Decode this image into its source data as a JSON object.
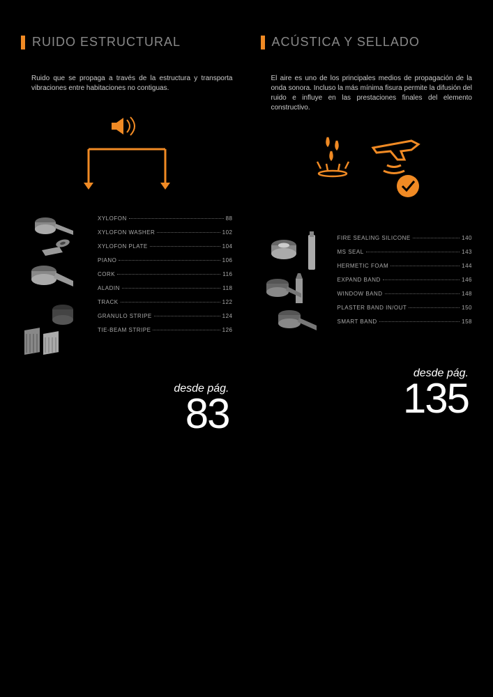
{
  "colors": {
    "accent": "#f08a24",
    "background": "#000000",
    "text_muted": "#888888",
    "text_body": "#cccccc",
    "text_list": "#aaaaaa",
    "icon_gray": "#9a9a9a"
  },
  "left": {
    "heading": "RUIDO ESTRUCTURAL",
    "description": "Ruido que se propaga a través de la estructura y transporta vibraciones entre habitaciones no contiguas.",
    "products": [
      {
        "name": "XYLOFON",
        "page": "88"
      },
      {
        "name": "XYLOFON WASHER",
        "page": "102"
      },
      {
        "name": "XYLOFON PLATE",
        "page": "104"
      },
      {
        "name": "PIANO",
        "page": "106"
      },
      {
        "name": "CORK",
        "page": "116"
      },
      {
        "name": "ALADIN",
        "page": "118"
      },
      {
        "name": "TRACK",
        "page": "122"
      },
      {
        "name": "GRANULO STRIPE",
        "page": "124"
      },
      {
        "name": "TIE-BEAM STRIPE",
        "page": "126"
      }
    ],
    "page_ref_label": "desde pág.",
    "page_ref_number": "83"
  },
  "right": {
    "heading": "ACÚSTICA Y SELLADO",
    "description": "El aire es uno de los principales medios de propagación de la onda sonora. Incluso la más mínima fisura permite la difusión del ruido e influye en las prestaciones finales del elemento constructivo.",
    "products": [
      {
        "name": "FIRE SEALING SILICONE",
        "page": "140"
      },
      {
        "name": "MS SEAL",
        "page": "143"
      },
      {
        "name": "HERMETIC FOAM",
        "page": "144"
      },
      {
        "name": "EXPAND BAND",
        "page": "146"
      },
      {
        "name": "WINDOW BAND",
        "page": "148"
      },
      {
        "name": "PLASTER BAND IN/OUT",
        "page": "150"
      },
      {
        "name": "SMART BAND",
        "page": "158"
      }
    ],
    "page_ref_label": "desde pág.",
    "page_ref_number": "135"
  }
}
